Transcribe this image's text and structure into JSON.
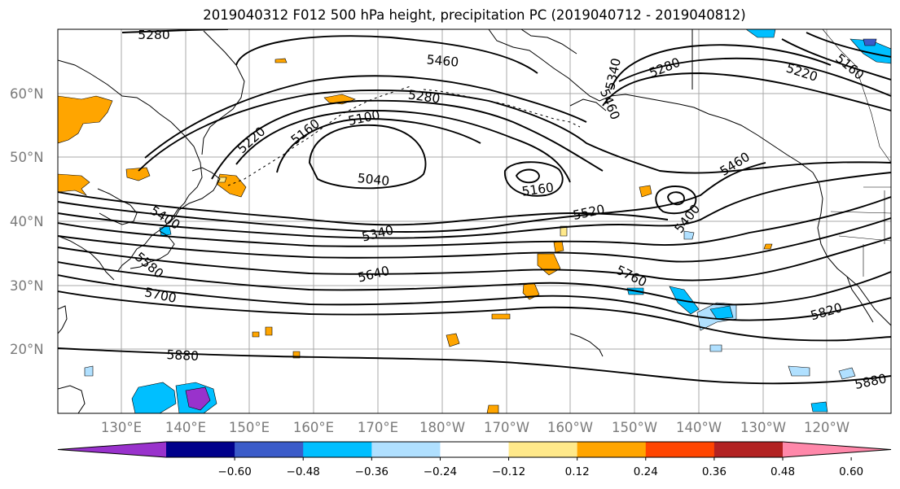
{
  "title": "2019040312 F012 500 hPa height, precipitation PC (2019040712 - 2019040812)",
  "lon_ticks": [
    "130°E",
    "140°E",
    "150°E",
    "160°E",
    "170°E",
    "180°W",
    "170°W",
    "160°W",
    "150°W",
    "140°W",
    "130°W",
    "120°W"
  ],
  "lat_ticks": [
    "60°N",
    "50°N",
    "40°N",
    "30°N",
    "20°N"
  ],
  "contour_labels": {
    "c5280a": "5280",
    "c5460a": "5460",
    "c5340a": "5340",
    "c5280b": "5280",
    "c5220a": "5220",
    "c5160a": "5160",
    "c5100a": "5100",
    "c5280c": "5280",
    "c5460b": "5460",
    "c5220b": "5220",
    "c5160b": "5160",
    "c5040": "5040",
    "c5160c": "5160",
    "c5460c": "5460",
    "c5520": "5520",
    "c5400a": "5400",
    "c5340b": "5340",
    "c5400b": "5400",
    "c5580": "5580",
    "c5640": "5640",
    "c5760": "5760",
    "c5700": "5700",
    "c5820": "5820",
    "c5880a": "5880",
    "c5880b": "5880"
  },
  "colorbar": {
    "ticks": [
      "−0.60",
      "−0.48",
      "−0.36",
      "−0.24",
      "−0.12",
      "0.12",
      "0.24",
      "0.36",
      "0.48",
      "0.60"
    ],
    "colors": [
      "#9932cc",
      "#00008b",
      "#3a5bc9",
      "#00bfff",
      "#b0e0ff",
      "#ffffff",
      "#ffe98a",
      "#ffa500",
      "#ff4500",
      "#b22222",
      "#ff88aa"
    ]
  },
  "colors": {
    "positive_shading": "#ffa500",
    "negative_shading": "#00bfff",
    "contour": "#000000",
    "grid": "#a0a0a0"
  }
}
